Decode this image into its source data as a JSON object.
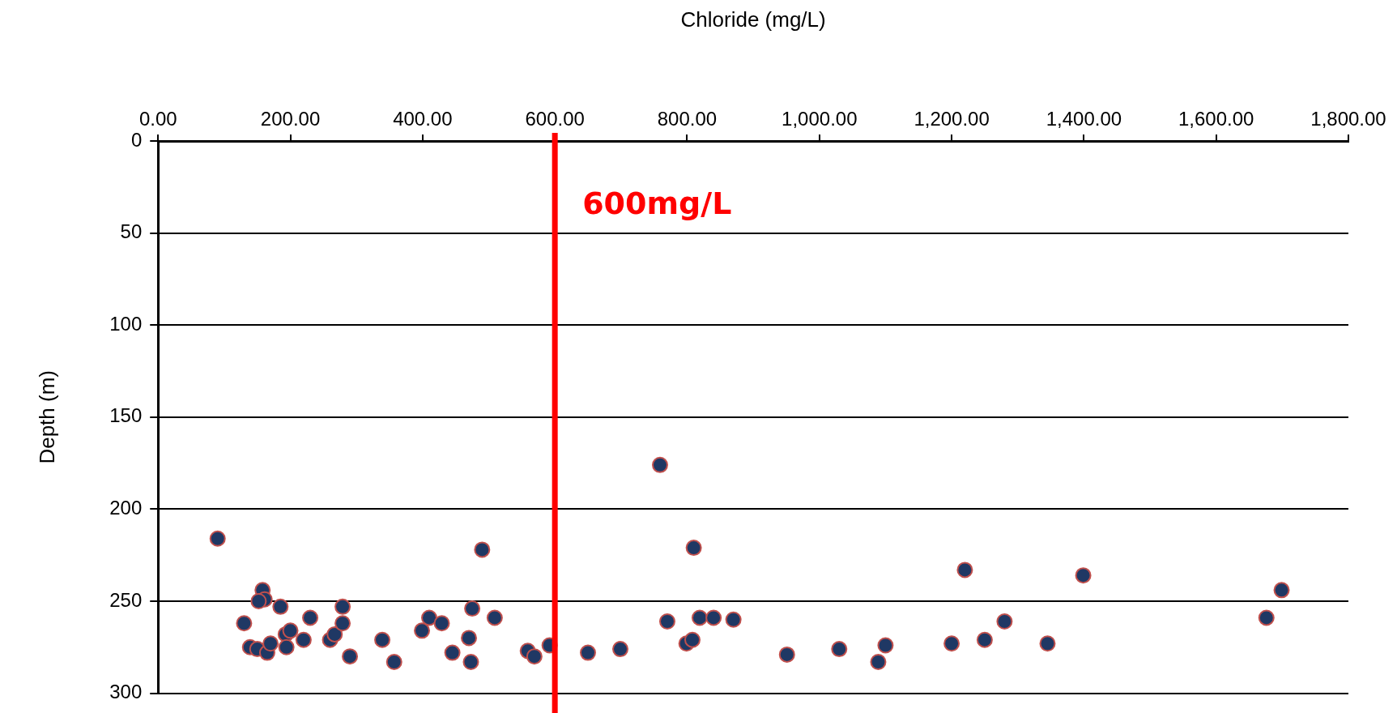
{
  "chart_data": {
    "type": "scatter",
    "xlabel": "Chloride (mg/L)",
    "ylabel": "Depth (m)",
    "x": [
      90,
      130,
      139,
      150,
      158,
      161,
      152,
      165,
      170,
      185,
      193,
      194,
      200,
      220,
      230,
      260,
      267,
      279,
      279,
      290,
      339,
      357,
      399,
      410,
      429,
      445,
      470,
      475,
      473,
      490,
      509,
      559,
      569,
      592,
      650,
      699,
      759,
      770,
      799,
      808,
      810,
      819,
      840,
      870,
      951,
      1030,
      1089,
      1100,
      1200,
      1220,
      1250,
      1280,
      1345,
      1399,
      1676,
      1699
    ],
    "values": [
      216,
      262,
      275,
      276,
      244,
      249,
      250,
      278,
      273,
      253,
      268,
      275,
      266,
      271,
      259,
      271,
      268,
      253,
      262,
      280,
      271,
      283,
      266,
      259,
      262,
      278,
      270,
      254,
      283,
      222,
      259,
      277,
      280,
      274,
      278,
      276,
      176,
      261,
      273,
      271,
      221,
      259,
      259,
      260,
      279,
      276,
      283,
      274,
      273,
      233,
      271,
      261,
      273,
      236,
      259,
      244
    ],
    "color": "#1f3864",
    "marker": "circle",
    "xlim": [
      0,
      1800
    ],
    "xticks": [
      {
        "value": 0,
        "label": "0.00"
      },
      {
        "value": 200,
        "label": "200.00"
      },
      {
        "value": 400,
        "label": "400.00"
      },
      {
        "value": 600,
        "label": "600.00"
      },
      {
        "value": 800,
        "label": "800.00"
      },
      {
        "value": 1000,
        "label": "1,000.00"
      },
      {
        "value": 1200,
        "label": "1,200.00"
      },
      {
        "value": 1400,
        "label": "1,400.00"
      },
      {
        "value": 1600,
        "label": "1,600.00"
      },
      {
        "value": 1800,
        "label": "1,800.00"
      }
    ],
    "ylim": [
      300,
      0
    ],
    "yticks": [
      0,
      50,
      100,
      150,
      200,
      250,
      300
    ],
    "grid": "y",
    "legend": false,
    "ref_lines": [
      {
        "axis": "x",
        "value": 600,
        "label": "600mg/L",
        "color": "#ff0000"
      }
    ]
  }
}
